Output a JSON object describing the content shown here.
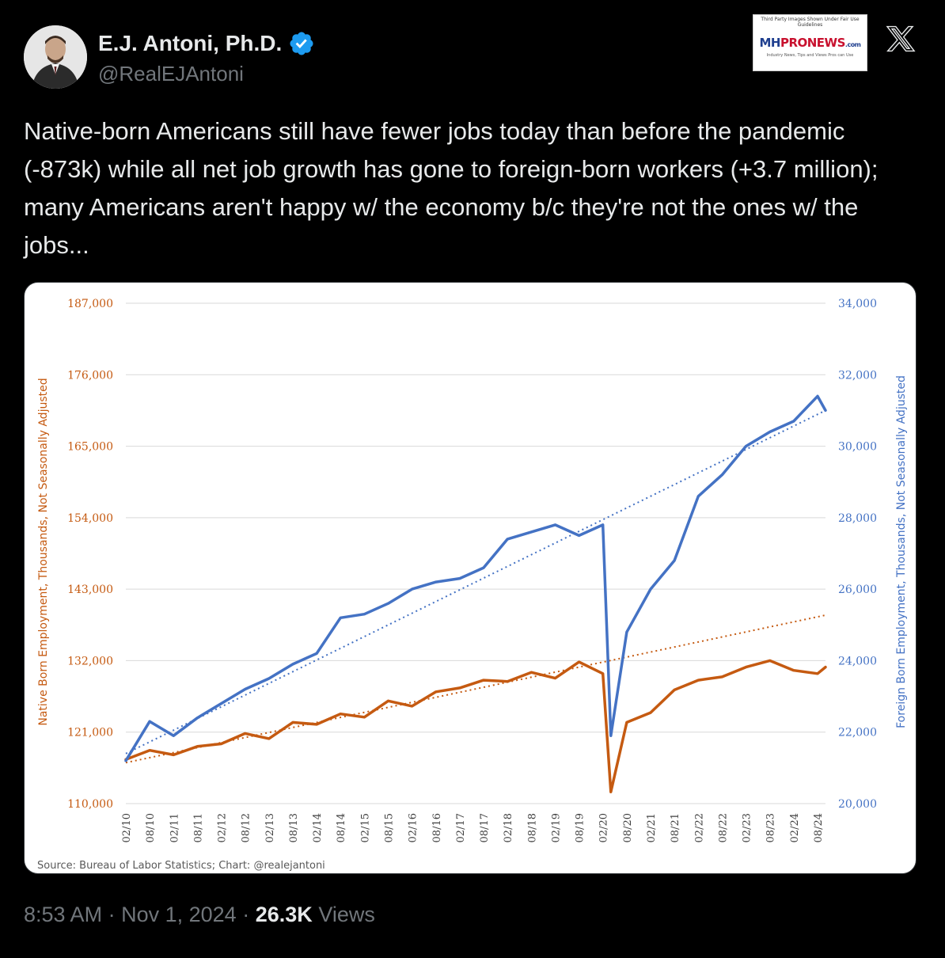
{
  "author": {
    "name": "E.J. Antoni, Ph.D.",
    "handle": "@RealEJAntoni",
    "verified": true,
    "verified_color": "#1d9bf0"
  },
  "watermark": {
    "top_text": "Third Party Images Shown Under Fair Use Guidelines",
    "logo_mh": "MH",
    "logo_pro": "PRONEWS",
    "logo_suffix": ".com",
    "tagline": "Industry News, Tips and Views Pros can Use"
  },
  "tweet": {
    "text": "Native-born Americans still have fewer jobs today than before the pandemic (-873k) while all net job growth has gone to foreign-born workers (+3.7 million); many Americans aren't happy w/ the economy b/c they're not the ones w/ the jobs..."
  },
  "meta": {
    "time": "8:53 AM",
    "date": "Nov 1, 2024",
    "separator": "·",
    "views_count": "26.3K",
    "views_label": "Views"
  },
  "icons": {
    "x_logo": "x-logo-icon",
    "verified": "verified-badge-icon"
  },
  "chart_data": {
    "type": "line",
    "title": "",
    "source": "Source: Bureau of Labor Statistics; Chart: @realejantoni",
    "ylabel_left": "Native Born Employment, Thousands, Not Seasonally Adjusted",
    "ylabel_right": "Foreign Born Employment, Thousands, Not Seasonally Adjusted",
    "ylim_left": [
      110000,
      187000
    ],
    "ylim_right": [
      20000,
      34000
    ],
    "yticks_left": [
      "110,000",
      "121,000",
      "132,000",
      "143,000",
      "154,000",
      "165,000",
      "176,000",
      "187,000"
    ],
    "yticks_right": [
      "20,000",
      "22,000",
      "24,000",
      "26,000",
      "28,000",
      "30,000",
      "32,000",
      "34,000"
    ],
    "x_ticks": [
      "02/10",
      "08/10",
      "02/11",
      "08/11",
      "02/12",
      "08/12",
      "02/13",
      "08/13",
      "02/14",
      "08/14",
      "02/15",
      "08/15",
      "02/16",
      "08/16",
      "02/17",
      "08/17",
      "02/18",
      "08/18",
      "02/19",
      "08/19",
      "02/20",
      "08/20",
      "02/21",
      "08/21",
      "02/22",
      "08/22",
      "02/23",
      "08/23",
      "02/24",
      "08/24"
    ],
    "grid": true,
    "colors": {
      "native": "#c55a11",
      "foreign": "#4472c4"
    },
    "series": [
      {
        "name": "Native Born",
        "axis": "left",
        "x": [
          "02/10",
          "08/10",
          "02/11",
          "08/11",
          "02/12",
          "08/12",
          "02/13",
          "08/13",
          "02/14",
          "08/14",
          "02/15",
          "08/15",
          "02/16",
          "08/16",
          "02/17",
          "08/17",
          "02/18",
          "08/18",
          "02/19",
          "08/19",
          "02/20",
          "04/20",
          "08/20",
          "02/21",
          "08/21",
          "02/22",
          "08/22",
          "02/23",
          "08/23",
          "02/24",
          "08/24",
          "10/24"
        ],
        "values": [
          116800,
          118200,
          117500,
          118800,
          119200,
          120800,
          120000,
          122500,
          122200,
          123800,
          123300,
          125800,
          125000,
          127200,
          127800,
          129000,
          128800,
          130200,
          129300,
          131800,
          130000,
          111800,
          122500,
          124000,
          127500,
          129000,
          129500,
          131000,
          132000,
          130500,
          130000,
          131000
        ]
      },
      {
        "name": "Foreign Born",
        "axis": "right",
        "x": [
          "02/10",
          "08/10",
          "02/11",
          "08/11",
          "02/12",
          "08/12",
          "02/13",
          "08/13",
          "02/14",
          "08/14",
          "02/15",
          "08/15",
          "02/16",
          "08/16",
          "02/17",
          "08/17",
          "02/18",
          "08/18",
          "02/19",
          "08/19",
          "02/20",
          "04/20",
          "08/20",
          "02/21",
          "08/21",
          "02/22",
          "08/22",
          "02/23",
          "08/23",
          "02/24",
          "08/24",
          "10/24"
        ],
        "values": [
          21200,
          22300,
          21900,
          22400,
          22800,
          23200,
          23500,
          23900,
          24200,
          25200,
          25300,
          25600,
          26000,
          26200,
          26300,
          26600,
          27400,
          27600,
          27800,
          27500,
          27800,
          21900,
          24800,
          26000,
          26800,
          28600,
          29200,
          30000,
          30400,
          30700,
          31400,
          31000
        ]
      }
    ],
    "trendlines": [
      {
        "series": "Native Born",
        "style": "dotted",
        "start": 116300,
        "end": 139000
      },
      {
        "series": "Foreign Born",
        "style": "dotted",
        "start": 21400,
        "end": 31000
      }
    ]
  }
}
